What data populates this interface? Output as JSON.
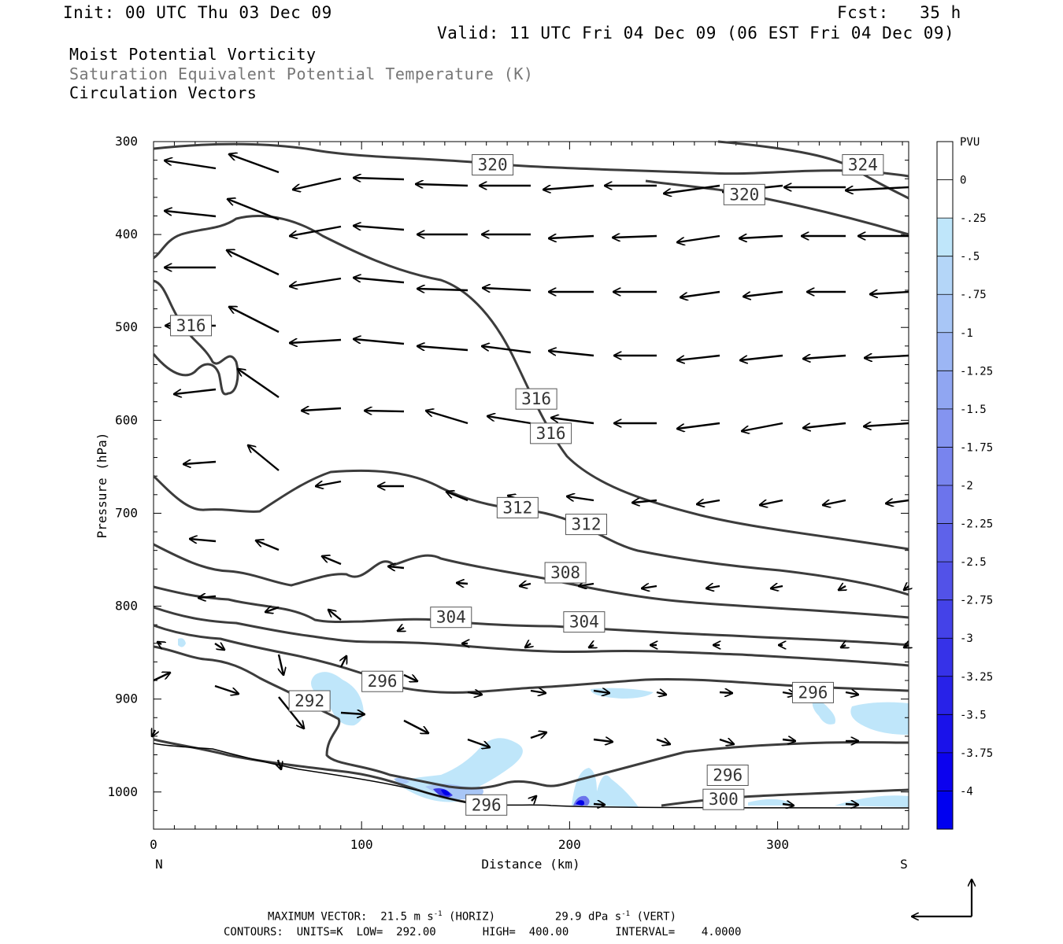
{
  "header": {
    "init": "Init: 00 UTC Thu 03 Dec 09",
    "fcst": "Fcst:   35 h",
    "valid": "Valid: 11 UTC Fri 04 Dec 09 (06 EST Fri 04 Dec 09)",
    "line1": "Moist Potential Vorticity",
    "line2": "Saturation Equivalent Potential Temperature (K)",
    "line3": "Circulation Vectors"
  },
  "footer": {
    "max_label": "MAXIMUM VECTOR:",
    "horiz": "21.5 m s",
    "horiz_exp": "-1",
    "horiz_unit": "(HORIZ)",
    "vert": "29.9 dPa s",
    "vert_exp": "-1",
    "vert_unit": "(VERT)",
    "contours": "CONTOURS:  UNITS=K  LOW=  292.00       HIGH=  400.00       INTERVAL=    4.0000"
  },
  "chart_data": {
    "type": "cross-section",
    "xlabel": "Distance (km)",
    "ylabel": "Pressure (hPa)",
    "xlim": [
      0,
      363
    ],
    "ylim": [
      1040,
      300
    ],
    "x_ticks": [
      0,
      100,
      200,
      300
    ],
    "y_ticks": [
      300,
      400,
      500,
      600,
      700,
      800,
      900,
      1000
    ],
    "x_end_left": "N",
    "x_end_right": "S",
    "colorbar": {
      "title": "PVU",
      "labels": [
        "0",
        "-.25",
        "-.5",
        "-.75",
        "-1",
        "-1.25",
        "-1.5",
        "-1.75",
        "-2",
        "-2.25",
        "-2.5",
        "-2.75",
        "-3",
        "-3.25",
        "-3.5",
        "-3.75",
        "-4"
      ],
      "colors": [
        "#ffffff",
        "#ffffff",
        "#bfe6fa",
        "#b4d6f8",
        "#a8c6f6",
        "#9cb6f4",
        "#90a6f2",
        "#8494f0",
        "#7884ee",
        "#6c74ec",
        "#5e62ea",
        "#5252e8",
        "#4442e8",
        "#3632e8",
        "#2822e8",
        "#1a12ea",
        "#0c02ee",
        "#0000f0"
      ]
    },
    "contour_labels": [
      {
        "value": "320",
        "x": 163,
        "p": 325
      },
      {
        "value": "324",
        "x": 341,
        "p": 325
      },
      {
        "value": "320",
        "x": 284,
        "p": 357
      },
      {
        "value": "316",
        "x": 18,
        "p": 498
      },
      {
        "value": "316",
        "x": 184,
        "p": 577
      },
      {
        "value": "316",
        "x": 191,
        "p": 614
      },
      {
        "value": "312",
        "x": 175,
        "p": 694
      },
      {
        "value": "312",
        "x": 208,
        "p": 712
      },
      {
        "value": "308",
        "x": 198,
        "p": 764
      },
      {
        "value": "304",
        "x": 143,
        "p": 812
      },
      {
        "value": "304",
        "x": 207,
        "p": 817
      },
      {
        "value": "296",
        "x": 110,
        "p": 881
      },
      {
        "value": "296",
        "x": 317,
        "p": 893
      },
      {
        "value": "292",
        "x": 75,
        "p": 902
      },
      {
        "value": "296",
        "x": 276,
        "p": 982
      },
      {
        "value": "300",
        "x": 274,
        "p": 1008
      },
      {
        "value": "296",
        "x": 160,
        "p": 1014
      }
    ]
  }
}
